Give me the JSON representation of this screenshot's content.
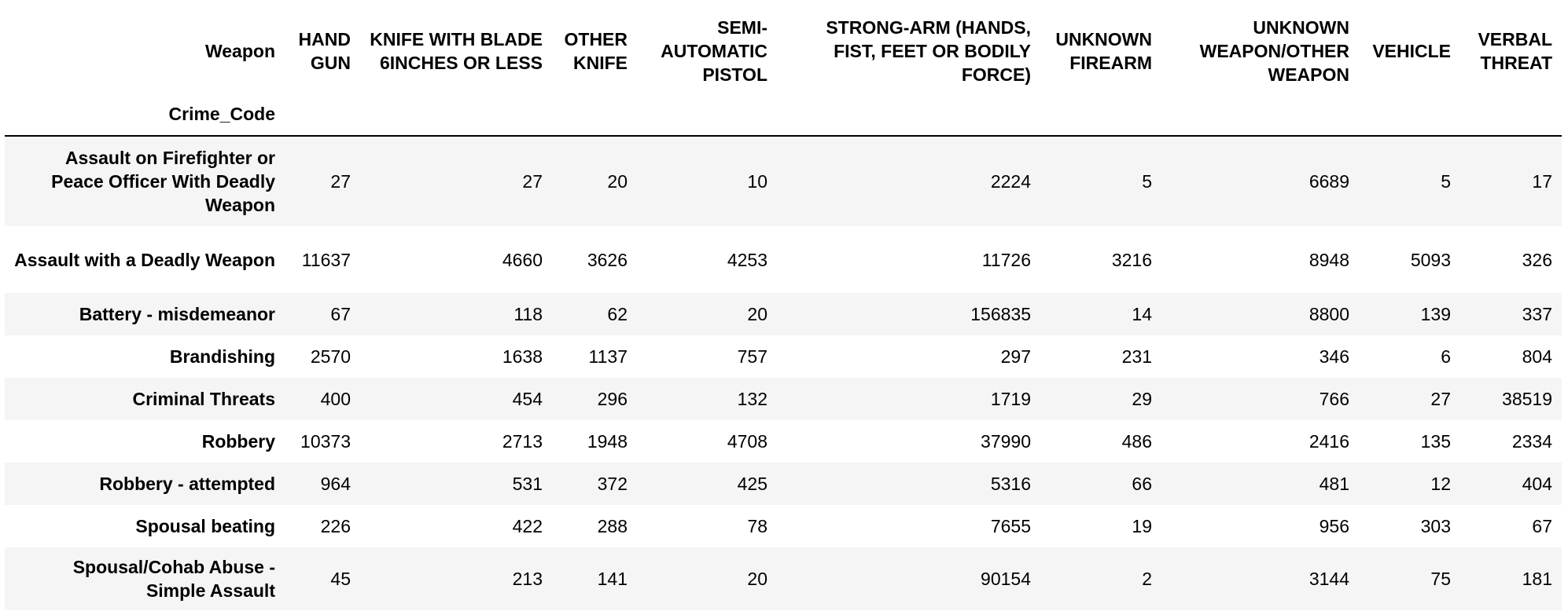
{
  "table": {
    "columns_name": "Weapon",
    "index_name": "Crime_Code",
    "columns": [
      "HAND GUN",
      "KNIFE WITH BLADE 6INCHES OR LESS",
      "OTHER KNIFE",
      "SEMI-AUTOMATIC PISTOL",
      "STRONG-ARM (HANDS, FIST, FEET OR BODILY FORCE)",
      "UNKNOWN FIREARM",
      "UNKNOWN WEAPON/OTHER WEAPON",
      "VEHICLE",
      "VERBAL THREAT"
    ],
    "rows": [
      {
        "label": "Assault on Firefighter or Peace Officer With Deadly Weapon",
        "values": [
          "27",
          "27",
          "20",
          "10",
          "2224",
          "5",
          "6689",
          "5",
          "17"
        ]
      },
      {
        "label": "Assault with a Deadly Weapon",
        "values": [
          "11637",
          "4660",
          "3626",
          "4253",
          "11726",
          "3216",
          "8948",
          "5093",
          "326"
        ]
      },
      {
        "label": "Battery - misdemeanor",
        "values": [
          "67",
          "118",
          "62",
          "20",
          "156835",
          "14",
          "8800",
          "139",
          "337"
        ]
      },
      {
        "label": "Brandishing",
        "values": [
          "2570",
          "1638",
          "1137",
          "757",
          "297",
          "231",
          "346",
          "6",
          "804"
        ]
      },
      {
        "label": "Criminal Threats",
        "values": [
          "400",
          "454",
          "296",
          "132",
          "1719",
          "29",
          "766",
          "27",
          "38519"
        ]
      },
      {
        "label": "Robbery",
        "values": [
          "10373",
          "2713",
          "1948",
          "4708",
          "37990",
          "486",
          "2416",
          "135",
          "2334"
        ]
      },
      {
        "label": "Robbery - attempted",
        "values": [
          "964",
          "531",
          "372",
          "425",
          "5316",
          "66",
          "481",
          "12",
          "404"
        ]
      },
      {
        "label": "Spousal beating",
        "values": [
          "226",
          "422",
          "288",
          "78",
          "7655",
          "19",
          "956",
          "303",
          "67"
        ]
      },
      {
        "label": "Spousal/Cohab Abuse - Simple Assault",
        "values": [
          "45",
          "213",
          "141",
          "20",
          "90154",
          "2",
          "3144",
          "75",
          "181"
        ]
      }
    ]
  }
}
